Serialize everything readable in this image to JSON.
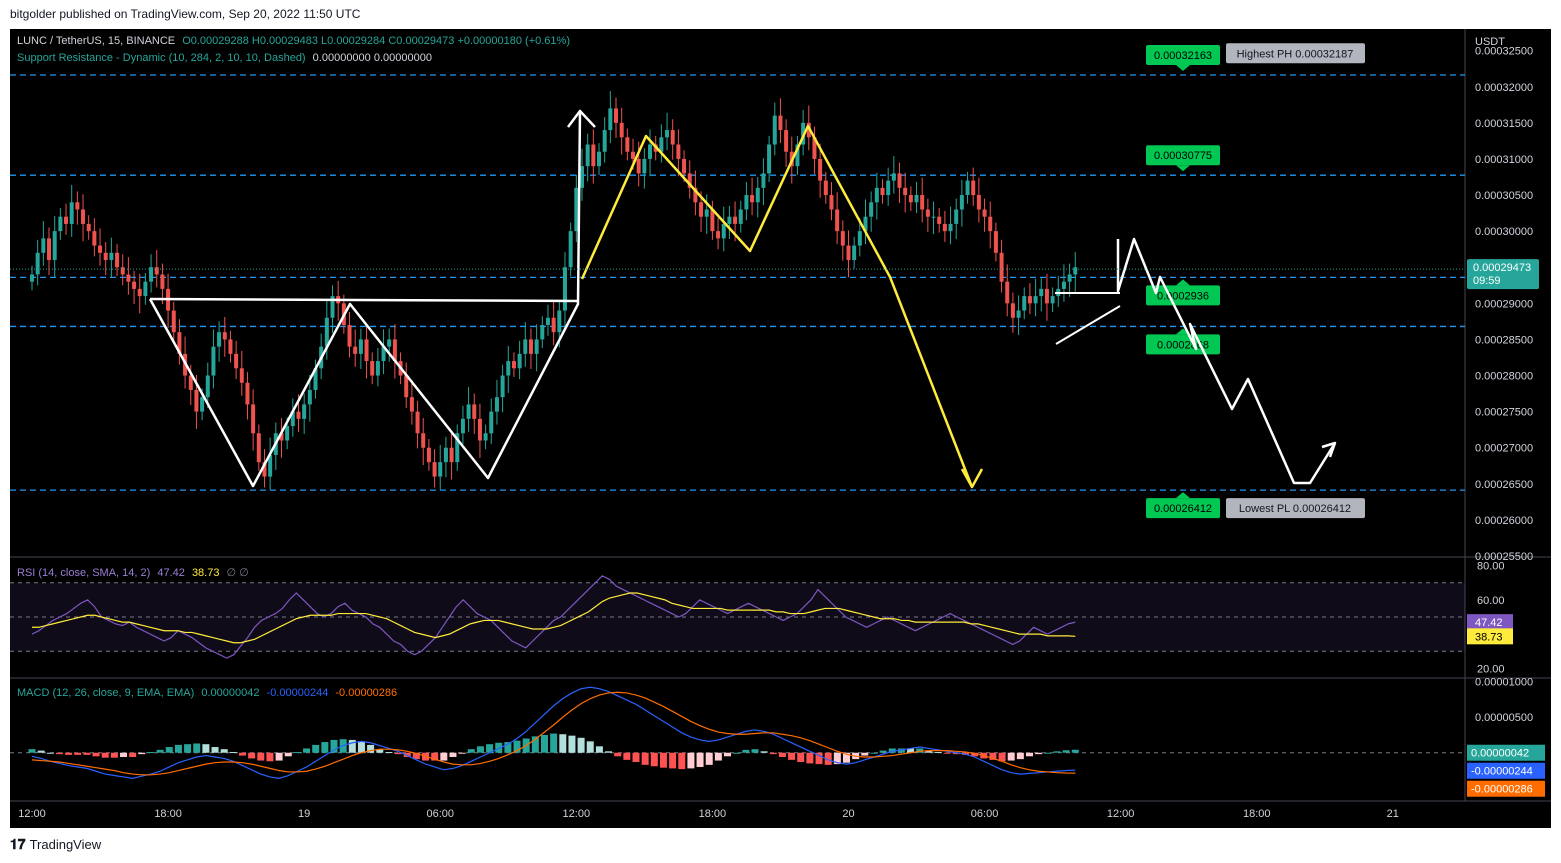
{
  "header": {
    "published": "bitgolder published on TradingView.com, Sep 20, 2022 11:50 UTC"
  },
  "footer": {
    "brand": "TradingView",
    "logo_icon": "tradingview-logo-icon"
  },
  "legend": {
    "symbol": "LUNC / TetherUS, 15, BINANCE",
    "ohlc": "O0.00029288 H0.00029483 L0.00029284 C0.00029473 +0.00000180 (+0.61%)",
    "indicator_name": "Support Resistance - Dynamic (10, 284, 2, 10, 10, Dashed)",
    "indicator_values": "0.00000000  0.00000000",
    "rsi_name": "RSI (14, close, SMA, 14, 2)",
    "rsi_value": "47.42",
    "rsi_sma": "38.73",
    "rsi_empty": "∅  ∅",
    "macd_name": "MACD (12, 26, close, 9, EMA, EMA)",
    "macd_hist": "0.00000042",
    "macd_line": "-0.00000244",
    "macd_signal": "-0.00000286"
  },
  "colors": {
    "up": "#26a69a",
    "down": "#ef5350",
    "level": "#2196f3",
    "badge": "#00c853",
    "rsi": "#7e57c2",
    "rsi_sma": "#ffeb3b",
    "macd": "#2962ff",
    "signal": "#ff6d00",
    "draw_white": "#ffffff",
    "draw_yellow": "#ffeb3b"
  },
  "chart_data": {
    "type": "candlestick",
    "price_axis": {
      "unit": "USDT",
      "ylim": [
        0.000255,
        0.000328
      ],
      "ticks": [
        "0.00032500",
        "0.00032000",
        "0.00031500",
        "0.00031000",
        "0.00030500",
        "0.00030000",
        "0.00029000",
        "0.00028500",
        "0.00028000",
        "0.00027500",
        "0.00027000",
        "0.00026500",
        "0.00026000",
        "0.00025500"
      ],
      "tick_values": [
        0.000325,
        0.00032,
        0.000315,
        0.00031,
        0.000305,
        0.0003,
        0.00029,
        0.000285,
        0.00028,
        0.000275,
        0.00027,
        0.000265,
        0.00026,
        0.000255
      ],
      "last_price": "0.00029473",
      "last_price_value": 0.00029473,
      "countdown": "09:59"
    },
    "time_axis": {
      "labels": [
        "12:00",
        "18:00",
        "19",
        "06:00",
        "12:00",
        "18:00",
        "20",
        "06:00",
        "12:00",
        "18:00",
        "21"
      ],
      "label_index": [
        0,
        24,
        48,
        72,
        96,
        120,
        144,
        168,
        192,
        216,
        240
      ]
    },
    "levels": [
      {
        "value": 0.00032163,
        "label": "0.00032163",
        "side": "above"
      },
      {
        "value": 0.00030775,
        "label": "0.00030775",
        "side": "above"
      },
      {
        "value": 0.0002936,
        "label": "0.0002936",
        "side": "below"
      },
      {
        "value": 0.0002868,
        "label": "0.0002868",
        "side": "below"
      },
      {
        "value": 0.00026412,
        "label": "0.00026412",
        "side": "below"
      }
    ],
    "pivots": [
      {
        "label": "Highest PH 0.00032187",
        "value": 0.00032187
      },
      {
        "label": "Lowest PL 0.00026412",
        "value": 0.00026412
      }
    ],
    "closes": [
      0.000294,
      0.000297,
      0.000299,
      0.000296,
      0.0003,
      0.000302,
      0.000301,
      0.000304,
      0.000303,
      0.000301,
      0.0003,
      0.000298,
      0.000297,
      0.000296,
      0.000297,
      0.000295,
      0.000294,
      0.000293,
      0.000292,
      0.000291,
      0.000293,
      0.000295,
      0.000294,
      0.000292,
      0.000289,
      0.000286,
      0.000283,
      0.00028,
      0.000278,
      0.000275,
      0.000277,
      0.00028,
      0.000284,
      0.000286,
      0.000285,
      0.000283,
      0.000281,
      0.000279,
      0.000276,
      0.000272,
      0.000268,
      0.000266,
      0.000269,
      0.000272,
      0.000271,
      0.000273,
      0.000275,
      0.000274,
      0.000276,
      0.000278,
      0.000281,
      0.000284,
      0.000288,
      0.000291,
      0.00029,
      0.000287,
      0.000284,
      0.000283,
      0.000285,
      0.000282,
      0.00028,
      0.000282,
      0.000284,
      0.000285,
      0.000282,
      0.00028,
      0.000277,
      0.000275,
      0.000272,
      0.00027,
      0.000268,
      0.000266,
      0.000268,
      0.00027,
      0.000268,
      0.000272,
      0.000274,
      0.000276,
      0.000274,
      0.000271,
      0.000272,
      0.000275,
      0.000277,
      0.00028,
      0.000282,
      0.000281,
      0.000283,
      0.000285,
      0.000283,
      0.000285,
      0.000287,
      0.000288,
      0.000286,
      0.000289,
      0.000295,
      0.0003,
      0.000306,
      0.000309,
      0.000312,
      0.000309,
      0.000311,
      0.000314,
      0.000317,
      0.000315,
      0.000313,
      0.000311,
      0.00031,
      0.000308,
      0.00031,
      0.000312,
      0.000311,
      0.000313,
      0.000314,
      0.000312,
      0.00031,
      0.000308,
      0.000306,
      0.000304,
      0.000302,
      0.000303,
      0.0003,
      0.000299,
      0.000301,
      0.000302,
      0.000301,
      0.000303,
      0.000305,
      0.000304,
      0.000306,
      0.000308,
      0.000312,
      0.000316,
      0.000314,
      0.000311,
      0.000309,
      0.000312,
      0.000315,
      0.000313,
      0.00031,
      0.000307,
      0.000305,
      0.000303,
      0.0003,
      0.000298,
      0.000296,
      0.000298,
      0.0003,
      0.000302,
      0.000304,
      0.000306,
      0.000305,
      0.000307,
      0.000308,
      0.000306,
      0.000305,
      0.000304,
      0.000305,
      0.000303,
      0.000302,
      0.000302,
      0.000301,
      0.0003,
      0.000301,
      0.000303,
      0.000305,
      0.000307,
      0.000305,
      0.000303,
      0.000302,
      0.0003,
      0.000297,
      0.000293,
      0.00029,
      0.000288,
      0.000289,
      0.000291,
      0.00029,
      0.000291,
      0.000292,
      0.00029,
      0.000291,
      0.000292,
      0.000293,
      0.000294,
      0.000295
    ],
    "rsi_axis": {
      "ticks": [
        "80.00",
        "60.00",
        "20.00"
      ],
      "tick_values": [
        80,
        60,
        20
      ],
      "ylim": [
        15,
        85
      ],
      "bands": [
        70,
        50,
        30
      ]
    },
    "rsi": [
      40,
      42,
      45,
      48,
      50,
      52,
      55,
      58,
      60,
      56,
      50,
      48,
      46,
      45,
      47,
      44,
      42,
      40,
      38,
      36,
      38,
      42,
      40,
      38,
      35,
      32,
      30,
      28,
      26,
      28,
      33,
      38,
      44,
      48,
      50,
      52,
      55,
      60,
      64,
      60,
      56,
      52,
      50,
      52,
      56,
      58,
      54,
      52,
      50,
      46,
      44,
      40,
      36,
      34,
      30,
      28,
      30,
      34,
      38,
      44,
      50,
      56,
      60,
      56,
      52,
      50,
      48,
      44,
      40,
      36,
      34,
      32,
      36,
      40,
      44,
      48,
      50,
      54,
      58,
      62,
      66,
      70,
      74,
      72,
      68,
      66,
      64,
      62,
      60,
      58,
      56,
      54,
      52,
      50,
      52,
      56,
      60,
      58,
      56,
      54,
      52,
      54,
      56,
      58,
      56,
      54,
      52,
      50,
      48,
      50,
      52,
      56,
      60,
      66,
      62,
      58,
      54,
      50,
      48,
      46,
      44,
      46,
      48,
      50,
      48,
      46,
      44,
      42,
      44,
      46,
      48,
      50,
      52,
      50,
      48,
      46,
      44,
      42,
      40,
      38,
      36,
      34,
      36,
      40,
      44,
      42,
      40,
      42,
      44,
      46,
      47
    ],
    "rsi_sma_series": [
      44,
      44,
      45,
      46,
      47,
      48,
      49,
      50,
      51,
      51,
      50,
      49,
      48,
      47,
      47,
      46,
      45,
      44,
      43,
      42,
      42,
      42,
      41,
      41,
      40,
      39,
      38,
      37,
      36,
      35,
      35,
      36,
      37,
      39,
      41,
      43,
      45,
      47,
      49,
      50,
      51,
      51,
      51,
      51,
      52,
      52,
      52,
      52,
      52,
      51,
      50,
      49,
      47,
      45,
      43,
      41,
      40,
      39,
      38,
      39,
      40,
      42,
      44,
      46,
      47,
      48,
      48,
      48,
      47,
      46,
      45,
      44,
      43,
      43,
      43,
      44,
      45,
      47,
      49,
      51,
      53,
      56,
      59,
      61,
      62,
      63,
      64,
      64,
      63,
      62,
      61,
      60,
      58,
      57,
      56,
      55,
      55,
      55,
      55,
      55,
      54,
      54,
      54,
      54,
      54,
      54,
      54,
      53,
      53,
      52,
      52,
      52,
      53,
      54,
      55,
      55,
      55,
      54,
      53,
      52,
      51,
      50,
      49,
      49,
      49,
      48,
      48,
      47,
      47,
      47,
      47,
      47,
      47,
      47,
      47,
      46,
      46,
      45,
      44,
      43,
      42,
      41,
      40,
      40,
      40,
      40,
      39,
      39,
      39,
      39,
      38.73
    ],
    "macd_axis": {
      "ticks": [
        "0.00001000",
        "0.00000500"
      ],
      "tick_values": [
        1e-05,
        5e-06
      ],
      "ylim": [
        -6.5e-06,
        1.05e-05
      ]
    },
    "macd": [
      -0.5,
      -0.8,
      -1.2,
      -1.5,
      -1.8,
      -2,
      -2.2,
      -2.6,
      -3,
      -3.2,
      -3.4,
      -3.6,
      -3.3,
      -3,
      -2.6,
      -2,
      -1.4,
      -1,
      -0.6,
      -0.4,
      -0.6,
      -0.8,
      -1.2,
      -1.8,
      -2.4,
      -3,
      -3.4,
      -3.6,
      -3.2,
      -2.6,
      -2,
      -1.2,
      -0.4,
      0.4,
      1,
      1.4,
      1.6,
      1.4,
      1,
      0.6,
      0.2,
      -0.4,
      -1,
      -1.6,
      -2,
      -2.4,
      -2.2,
      -1.8,
      -1.2,
      -0.6,
      0,
      0.6,
      1.2,
      2,
      3,
      4.2,
      5.4,
      6.6,
      7.6,
      8.4,
      9,
      9.2,
      9,
      8.6,
      8,
      7.4,
      6.8,
      6,
      5.2,
      4.4,
      3.6,
      2.8,
      2.2,
      1.8,
      1.6,
      1.8,
      2.2,
      2.6,
      3,
      3.2,
      3,
      2.6,
      2,
      1.4,
      0.8,
      0.2,
      -0.4,
      -1,
      -1.4,
      -1.6,
      -1.4,
      -1,
      -0.6,
      -0.2,
      0.2,
      0.4,
      0.6,
      0.8,
      0.6,
      0.4,
      0.2,
      0,
      -0.2,
      -0.6,
      -1.2,
      -1.8,
      -2.4,
      -2.8,
      -3,
      -2.9,
      -2.8,
      -2.7,
      -2.6,
      -2.5,
      -2.44
    ],
    "macd_signal_series": [
      -1,
      -1.1,
      -1.2,
      -1.3,
      -1.5,
      -1.7,
      -1.9,
      -2.1,
      -2.3,
      -2.5,
      -2.8,
      -3,
      -3.1,
      -3.1,
      -3,
      -2.8,
      -2.5,
      -2.2,
      -1.9,
      -1.6,
      -1.4,
      -1.3,
      -1.3,
      -1.4,
      -1.6,
      -1.9,
      -2.2,
      -2.5,
      -2.7,
      -2.7,
      -2.6,
      -2.3,
      -1.9,
      -1.4,
      -0.9,
      -0.4,
      0,
      0.3,
      0.5,
      0.5,
      0.4,
      0.2,
      -0.1,
      -0.5,
      -0.9,
      -1.3,
      -1.6,
      -1.7,
      -1.7,
      -1.5,
      -1.2,
      -0.8,
      -0.3,
      0.3,
      1,
      1.9,
      2.9,
      3.9,
      5,
      6,
      6.9,
      7.6,
      8.1,
      8.4,
      8.5,
      8.4,
      8.1,
      7.7,
      7.1,
      6.5,
      5.8,
      5.1,
      4.4,
      3.8,
      3.3,
      2.9,
      2.7,
      2.6,
      2.6,
      2.7,
      2.8,
      2.8,
      2.6,
      2.4,
      2.1,
      1.7,
      1.2,
      0.7,
      0.2,
      -0.2,
      -0.5,
      -0.6,
      -0.6,
      -0.5,
      -0.4,
      -0.2,
      0,
      0.2,
      0.3,
      0.3,
      0.3,
      0.2,
      0.1,
      -0.1,
      -0.4,
      -0.8,
      -1.2,
      -1.7,
      -2.1,
      -2.4,
      -2.6,
      -2.7,
      -2.8,
      -2.85,
      -2.86
    ],
    "macd_histogram_last": 4.2e-07,
    "macd_line_last": -2.44e-06,
    "macd_signal_last": -2.86e-06
  }
}
